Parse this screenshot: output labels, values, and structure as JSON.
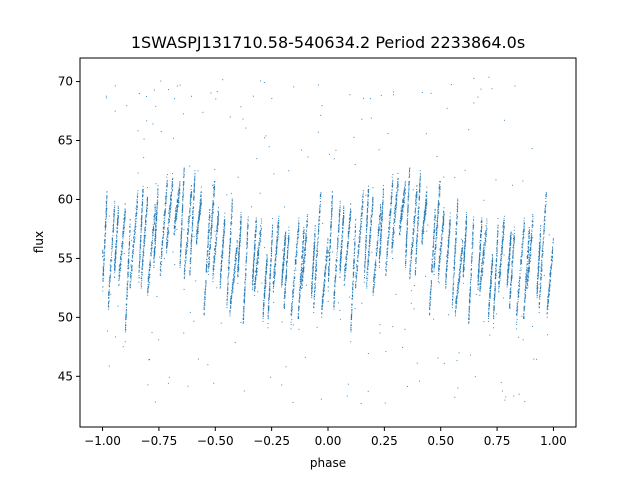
{
  "chart_data": {
    "type": "scatter",
    "title": "1SWASPJ131710.58-540634.2 Period 2233864.0s",
    "xlabel": "phase",
    "ylabel": "flux",
    "xlim": [
      -1.1,
      1.1
    ],
    "ylim": [
      40.7,
      72.0
    ],
    "x_ticks": [
      -1.0,
      -0.75,
      -0.5,
      -0.25,
      0.0,
      0.25,
      0.5,
      0.75,
      1.0
    ],
    "x_tick_labels": [
      "−1.00",
      "−0.75",
      "−0.50",
      "−0.25",
      "0.00",
      "0.25",
      "0.50",
      "0.75",
      "1.00"
    ],
    "y_ticks": [
      45,
      50,
      55,
      60,
      65,
      70
    ],
    "y_tick_labels": [
      "45",
      "50",
      "55",
      "60",
      "65",
      "70"
    ],
    "marker_color": "#1f77b4",
    "grid": false,
    "series": [
      {
        "trend": {
          "phase": [
            -1.0,
            -0.9,
            -0.8,
            -0.7,
            -0.6,
            -0.5,
            -0.4,
            -0.3,
            -0.2,
            -0.1,
            0.0,
            0.1,
            0.2,
            0.3,
            0.4,
            0.5,
            0.6,
            0.7,
            0.8,
            0.9,
            1.0
          ],
          "flux": [
            56.5,
            55.0,
            57.5,
            58.5,
            57.5,
            56.0,
            55.0,
            54.0,
            53.5,
            53.0,
            55.5,
            55.0,
            57.5,
            58.5,
            57.5,
            56.0,
            55.0,
            54.0,
            53.5,
            53.0,
            56.5
          ]
        },
        "segment_half_span": 3.5,
        "segment_count": 38,
        "points_per_segment": 140,
        "outlier_count": 240,
        "outlier_range": [
          42.5,
          70.5
        ]
      }
    ]
  }
}
